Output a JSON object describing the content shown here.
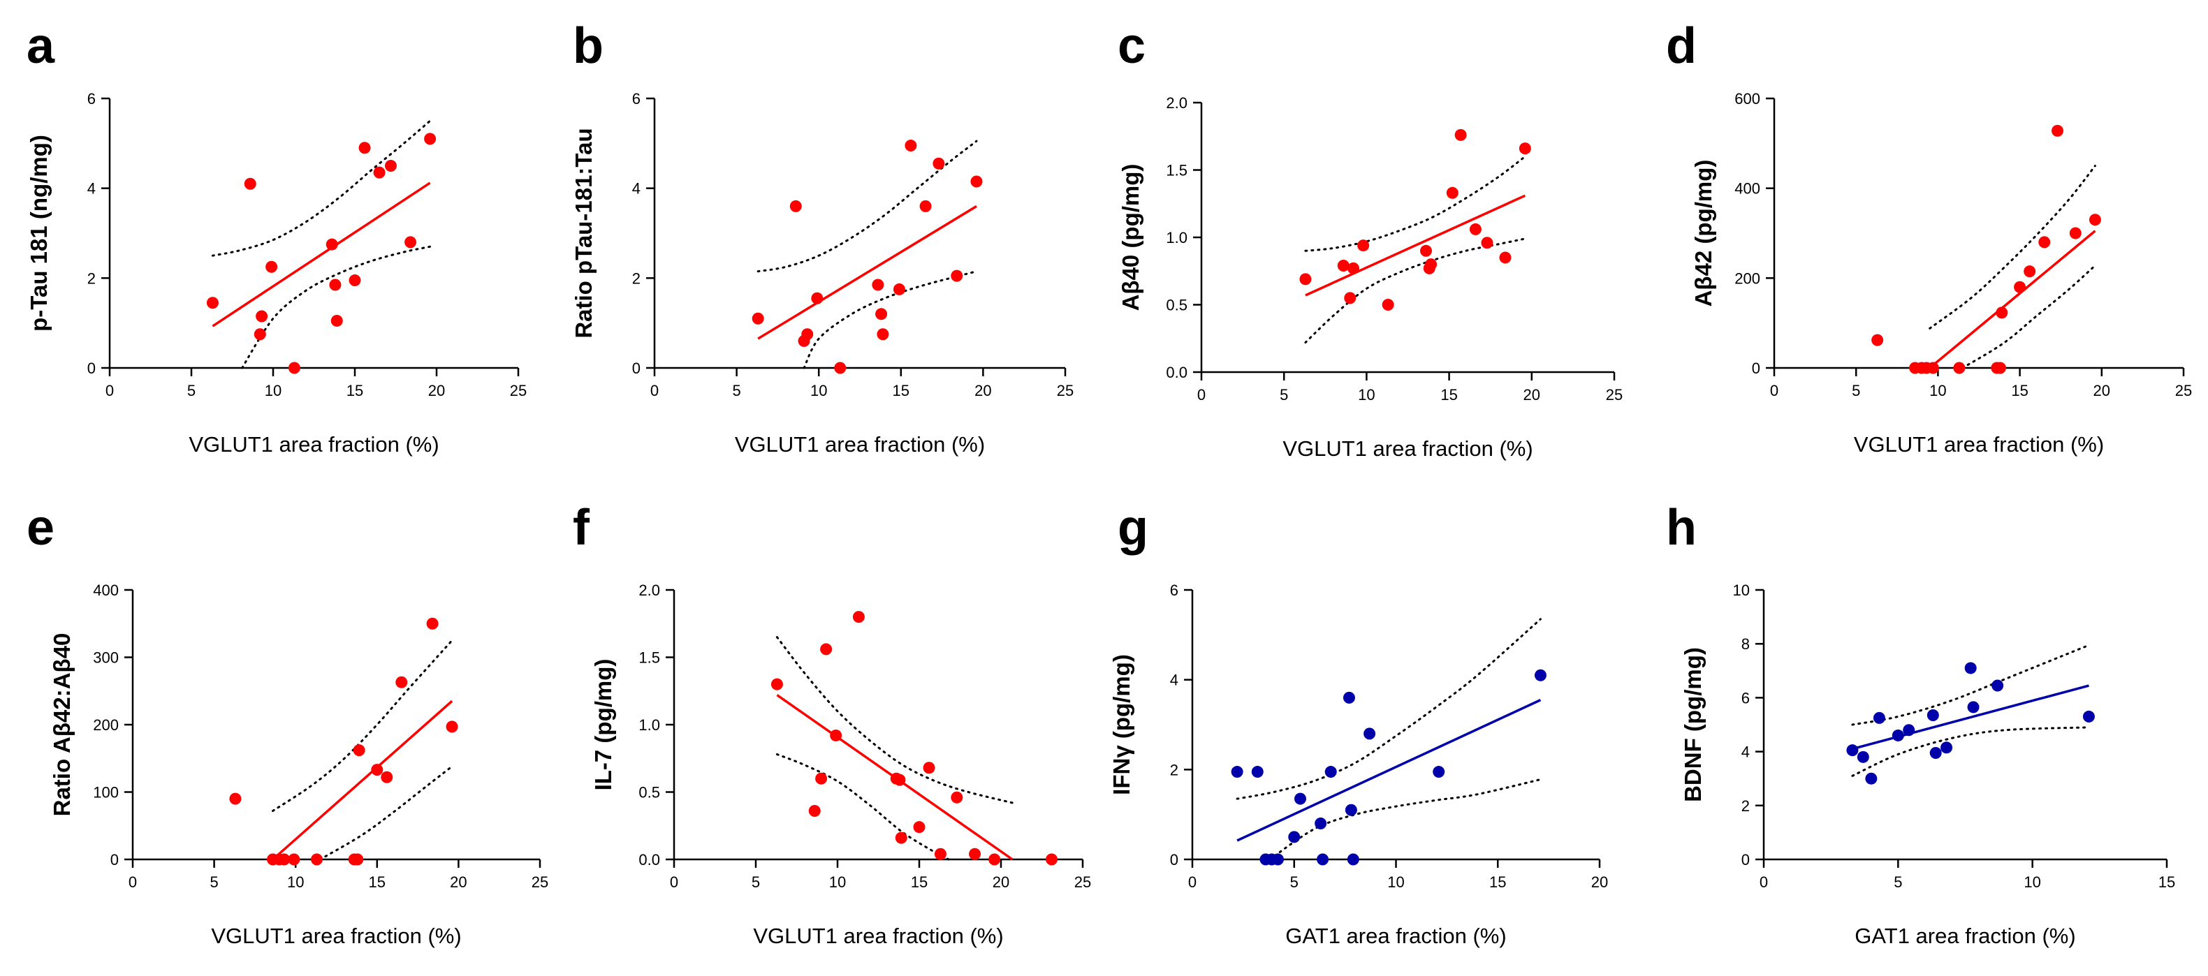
{
  "colors": {
    "red": "#ff0000",
    "blue": "#0000aa"
  },
  "chart_data": [
    {
      "type": "scatter",
      "letter": "a",
      "color": "red",
      "xlabel": "VGLUT1 area fraction (%)",
      "ylabel": "p-Tau 181 (ng/mg)",
      "xlim": [
        0,
        25
      ],
      "ylim": [
        0,
        6
      ],
      "xticks": [
        0,
        5,
        10,
        15,
        20,
        25
      ],
      "yticks": [
        0,
        2,
        4,
        6
      ],
      "xtick_labels": [
        "0",
        "5",
        "10",
        "15",
        "20",
        "25"
      ],
      "ytick_labels": [
        "0",
        "2",
        "4",
        "6"
      ],
      "x": [
        6.3,
        8.6,
        9.2,
        9.3,
        9.9,
        11.3,
        13.6,
        13.8,
        13.9,
        15.0,
        15.6,
        16.5,
        17.2,
        18.4,
        19.6
      ],
      "y": [
        1.45,
        4.1,
        0.75,
        1.15,
        2.25,
        0.0,
        2.75,
        1.85,
        1.05,
        1.95,
        4.9,
        4.35,
        4.5,
        2.8,
        5.1
      ],
      "fit": {
        "x": [
          6.3,
          19.6
        ],
        "y": [
          0.93,
          4.12
        ]
      },
      "ci_upper": {
        "x": [
          6.3,
          8,
          10,
          12,
          14,
          16,
          18,
          19.6
        ],
        "y": [
          2.5,
          2.62,
          2.85,
          3.25,
          3.78,
          4.4,
          5.0,
          5.5
        ]
      },
      "ci_lower": {
        "x": [
          8.1,
          10,
          12,
          14,
          16,
          18,
          19.6
        ],
        "y": [
          0.0,
          1.1,
          1.72,
          2.1,
          2.38,
          2.58,
          2.7
        ]
      }
    },
    {
      "type": "scatter",
      "letter": "b",
      "color": "red",
      "xlabel": "VGLUT1 area fraction (%)",
      "ylabel": "Ratio pTau-181:Tau",
      "xlim": [
        0,
        25
      ],
      "ylim": [
        0,
        6
      ],
      "xticks": [
        0,
        5,
        10,
        15,
        20,
        25
      ],
      "yticks": [
        0,
        2,
        4,
        6
      ],
      "xtick_labels": [
        "0",
        "5",
        "10",
        "15",
        "20",
        "25"
      ],
      "ytick_labels": [
        "0",
        "2",
        "4",
        "6"
      ],
      "x": [
        6.3,
        8.6,
        9.1,
        9.3,
        9.9,
        11.3,
        13.6,
        13.8,
        13.9,
        14.9,
        15.6,
        16.5,
        17.3,
        18.4,
        19.6
      ],
      "y": [
        1.1,
        3.6,
        0.6,
        0.75,
        1.55,
        0.0,
        1.85,
        1.2,
        0.75,
        1.75,
        4.95,
        3.6,
        4.55,
        2.05,
        4.15
      ],
      "fit": {
        "x": [
          6.3,
          19.6
        ],
        "y": [
          0.65,
          3.6
        ]
      },
      "ci_upper": {
        "x": [
          6.3,
          8,
          10,
          12,
          14,
          16,
          18,
          19.6
        ],
        "y": [
          2.15,
          2.25,
          2.5,
          2.9,
          3.4,
          4.0,
          4.6,
          5.05
        ]
      },
      "ci_lower": {
        "x": [
          9.1,
          10,
          12,
          14,
          16,
          18,
          19.6
        ],
        "y": [
          0.0,
          0.65,
          1.2,
          1.55,
          1.8,
          2.0,
          2.15
        ]
      }
    },
    {
      "type": "scatter",
      "letter": "c",
      "color": "red",
      "xlabel": "VGLUT1 area fraction (%)",
      "ylabel": "Aβ40 (pg/mg)",
      "xlim": [
        0,
        25
      ],
      "ylim": [
        0,
        2
      ],
      "xticks": [
        0,
        5,
        10,
        15,
        20,
        25
      ],
      "yticks": [
        0,
        0.5,
        1,
        1.5,
        2
      ],
      "xtick_labels": [
        "0",
        "5",
        "10",
        "15",
        "20",
        "25"
      ],
      "ytick_labels": [
        "0.0",
        "0.5",
        "1.0",
        "1.5",
        "2.0"
      ],
      "x": [
        6.3,
        8.6,
        9.0,
        9.2,
        9.8,
        11.3,
        13.6,
        13.8,
        13.9,
        15.2,
        15.7,
        16.6,
        17.3,
        18.4,
        19.6
      ],
      "y": [
        0.69,
        0.79,
        0.55,
        0.77,
        0.94,
        0.5,
        0.9,
        0.77,
        0.8,
        1.33,
        1.76,
        1.06,
        0.96,
        0.85,
        1.66
      ],
      "fit": {
        "x": [
          6.3,
          19.6
        ],
        "y": [
          0.57,
          1.31
        ]
      },
      "ci_upper": {
        "x": [
          6.3,
          8,
          10,
          12,
          14,
          16,
          18,
          19.6
        ],
        "y": [
          0.9,
          0.92,
          0.97,
          1.05,
          1.15,
          1.29,
          1.45,
          1.6
        ]
      },
      "ci_lower": {
        "x": [
          6.3,
          8,
          10,
          12,
          14,
          16,
          18,
          19.6
        ],
        "y": [
          0.22,
          0.42,
          0.62,
          0.74,
          0.83,
          0.9,
          0.95,
          0.99
        ]
      }
    },
    {
      "type": "scatter",
      "letter": "d",
      "color": "red",
      "xlabel": "VGLUT1 area fraction (%)",
      "ylabel": "Aβ42 (pg/mg)",
      "xlim": [
        0,
        25
      ],
      "ylim": [
        0,
        600
      ],
      "xticks": [
        0,
        5,
        10,
        15,
        20,
        25
      ],
      "yticks": [
        0,
        200,
        400,
        600
      ],
      "xtick_labels": [
        "0",
        "5",
        "10",
        "15",
        "20",
        "25"
      ],
      "ytick_labels": [
        "0",
        "200",
        "400",
        "600"
      ],
      "x": [
        6.3,
        8.6,
        9.0,
        9.3,
        9.7,
        11.3,
        13.6,
        13.8,
        13.9,
        15.0,
        15.6,
        16.5,
        17.3,
        18.4,
        19.6
      ],
      "y": [
        62,
        0,
        0,
        0,
        0,
        0,
        0,
        0,
        123,
        180,
        215,
        280,
        528,
        300,
        330
      ],
      "fit": {
        "x": [
          9.5,
          19.6
        ],
        "y": [
          0,
          305
        ]
      },
      "ci_upper": {
        "x": [
          9.5,
          12,
          14,
          16,
          18,
          19.6
        ],
        "y": [
          88,
          155,
          222,
          295,
          375,
          450
        ]
      },
      "ci_lower": {
        "x": [
          11.5,
          14,
          16,
          18,
          19.6
        ],
        "y": [
          0,
          55,
          115,
          175,
          228
        ]
      }
    },
    {
      "type": "scatter",
      "letter": "e",
      "color": "red",
      "xlabel": "VGLUT1 area fraction (%)",
      "ylabel": "Ratio Aβ42:Aβ40",
      "xlim": [
        0,
        25
      ],
      "ylim": [
        0,
        400
      ],
      "xticks": [
        0,
        5,
        10,
        15,
        20,
        25
      ],
      "yticks": [
        0,
        100,
        200,
        300,
        400
      ],
      "xtick_labels": [
        "0",
        "5",
        "10",
        "15",
        "20",
        "25"
      ],
      "ytick_labels": [
        "0",
        "100",
        "200",
        "300",
        "400"
      ],
      "x": [
        6.3,
        8.6,
        9.0,
        9.3,
        9.9,
        11.3,
        13.6,
        13.8,
        13.9,
        15.0,
        15.6,
        16.5,
        18.4,
        19.6
      ],
      "y": [
        90,
        0,
        0,
        0,
        0,
        0,
        0,
        0,
        162,
        133,
        122,
        263,
        350,
        197
      ],
      "fit": {
        "x": [
          8.6,
          19.6
        ],
        "y": [
          0,
          235
        ]
      },
      "ci_upper": {
        "x": [
          8.6,
          11,
          13,
          15,
          17,
          19.6
        ],
        "y": [
          72,
          110,
          150,
          200,
          255,
          325
        ]
      },
      "ci_lower": {
        "x": [
          11.5,
          14,
          16,
          18,
          19.6
        ],
        "y": [
          0,
          35,
          70,
          108,
          138
        ]
      }
    },
    {
      "type": "scatter",
      "letter": "f",
      "color": "red",
      "xlabel": "VGLUT1 area fraction (%)",
      "ylabel": "IL-7 (pg/mg)",
      "xlim": [
        0,
        25
      ],
      "ylim": [
        0,
        2
      ],
      "xticks": [
        0,
        5,
        10,
        15,
        20,
        25
      ],
      "yticks": [
        0,
        0.5,
        1,
        1.5,
        2
      ],
      "xtick_labels": [
        "0",
        "5",
        "10",
        "15",
        "20",
        "25"
      ],
      "ytick_labels": [
        "0.0",
        "0.5",
        "1.0",
        "1.5",
        "2.0"
      ],
      "x": [
        6.3,
        8.6,
        9.0,
        9.3,
        9.9,
        11.3,
        13.6,
        13.8,
        13.9,
        15.0,
        15.6,
        16.3,
        17.3,
        18.4,
        19.6,
        23.1
      ],
      "y": [
        1.3,
        0.36,
        0.6,
        1.56,
        0.92,
        1.8,
        0.6,
        0.59,
        0.16,
        0.24,
        0.68,
        0.04,
        0.46,
        0.04,
        0.0,
        0.0
      ],
      "fit": {
        "x": [
          6.3,
          20.7
        ],
        "y": [
          1.22,
          0.0
        ]
      },
      "ci_upper": {
        "x": [
          6.3,
          8,
          10,
          12,
          14,
          16,
          18,
          20.7
        ],
        "y": [
          1.65,
          1.38,
          1.1,
          0.88,
          0.7,
          0.58,
          0.5,
          0.42
        ]
      },
      "ci_lower": {
        "x": [
          6.3,
          8,
          10,
          12,
          14,
          16,
          16.8
        ],
        "y": [
          0.78,
          0.7,
          0.58,
          0.4,
          0.2,
          0.05,
          0.0
        ]
      }
    },
    {
      "type": "scatter",
      "letter": "g",
      "color": "blue",
      "xlabel": "GAT1 area fraction (%)",
      "ylabel": "IFNγ (pg/mg)",
      "xlim": [
        0,
        20
      ],
      "ylim": [
        0,
        6
      ],
      "xticks": [
        0,
        5,
        10,
        15,
        20
      ],
      "yticks": [
        0,
        2,
        4,
        6
      ],
      "xtick_labels": [
        "0",
        "5",
        "10",
        "15",
        "20"
      ],
      "ytick_labels": [
        "0",
        "2",
        "4",
        "6"
      ],
      "x": [
        2.2,
        3.2,
        3.6,
        3.9,
        4.2,
        5.0,
        5.3,
        6.3,
        6.4,
        6.8,
        7.7,
        7.8,
        7.9,
        8.7,
        12.1,
        17.1
      ],
      "y": [
        1.95,
        1.95,
        0.0,
        0.0,
        0.0,
        0.5,
        1.35,
        0.8,
        0.0,
        1.95,
        3.6,
        1.1,
        0.0,
        2.8,
        1.95,
        4.1
      ],
      "fit": {
        "x": [
          2.2,
          17.1
        ],
        "y": [
          0.42,
          3.55
        ]
      },
      "ci_upper": {
        "x": [
          2.2,
          4,
          6,
          8,
          10,
          12,
          14,
          17.1
        ],
        "y": [
          1.35,
          1.5,
          1.75,
          2.15,
          2.75,
          3.4,
          4.1,
          5.35
        ]
      },
      "ci_lower": {
        "x": [
          3.8,
          6,
          8,
          10,
          12,
          14,
          17.1
        ],
        "y": [
          0.0,
          0.68,
          1.0,
          1.18,
          1.32,
          1.45,
          1.78
        ]
      }
    },
    {
      "type": "scatter",
      "letter": "h",
      "color": "blue",
      "xlabel": "GAT1 area fraction (%)",
      "ylabel": "BDNF (pg/mg)",
      "xlim": [
        0,
        15
      ],
      "ylim": [
        0,
        10
      ],
      "xticks": [
        0,
        5,
        10,
        15
      ],
      "yticks": [
        0,
        2,
        4,
        6,
        8,
        10
      ],
      "xtick_labels": [
        "0",
        "5",
        "10",
        "15"
      ],
      "ytick_labels": [
        "0",
        "2",
        "4",
        "6",
        "8",
        "10"
      ],
      "x": [
        3.3,
        3.7,
        4.0,
        4.3,
        5.0,
        5.4,
        6.3,
        6.4,
        6.8,
        7.7,
        7.8,
        8.7,
        12.1
      ],
      "y": [
        4.05,
        3.8,
        3.0,
        5.25,
        4.6,
        4.8,
        5.35,
        3.95,
        4.15,
        7.1,
        5.65,
        6.45,
        5.3
      ],
      "fit": {
        "x": [
          3.3,
          12.1
        ],
        "y": [
          4.1,
          6.45
        ]
      },
      "ci_upper": {
        "x": [
          3.3,
          5,
          7,
          9,
          12.1
        ],
        "y": [
          5.0,
          5.3,
          5.9,
          6.7,
          7.95
        ]
      },
      "ci_lower": {
        "x": [
          3.3,
          5,
          7,
          9,
          12.1
        ],
        "y": [
          3.1,
          3.9,
          4.5,
          4.8,
          4.9
        ]
      }
    }
  ]
}
